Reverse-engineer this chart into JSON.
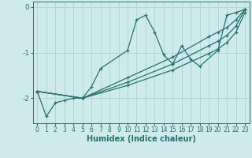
{
  "xlabel": "Humidex (Indice chaleur)",
  "xlim": [
    -0.5,
    23.5
  ],
  "ylim": [
    -2.55,
    0.12
  ],
  "yticks": [
    0,
    -1,
    -2
  ],
  "xticks": [
    0,
    1,
    2,
    3,
    4,
    5,
    6,
    7,
    8,
    9,
    10,
    11,
    12,
    13,
    14,
    15,
    16,
    17,
    18,
    19,
    20,
    21,
    22,
    23
  ],
  "bg_color": "#ceeaea",
  "line_color": "#2a7070",
  "grid_color": "#aad4d4",
  "lines": [
    {
      "x": [
        0,
        1,
        2,
        3,
        4,
        5,
        6,
        7,
        10,
        11,
        12,
        13,
        14,
        15,
        16,
        17,
        18,
        20,
        21,
        22,
        23
      ],
      "y": [
        -1.85,
        -2.4,
        -2.1,
        -2.05,
        -2.0,
        -2.0,
        -1.75,
        -1.35,
        -0.95,
        -0.28,
        -0.18,
        -0.55,
        -1.05,
        -1.25,
        -0.85,
        -1.15,
        -1.3,
        -0.95,
        -0.18,
        -0.12,
        -0.05
      ]
    },
    {
      "x": [
        0,
        5,
        10,
        15,
        19,
        20,
        21,
        22,
        23
      ],
      "y": [
        -1.85,
        -2.0,
        -1.55,
        -1.1,
        -0.65,
        -0.55,
        -0.45,
        -0.28,
        -0.05
      ]
    },
    {
      "x": [
        0,
        5,
        10,
        15,
        19,
        20,
        21,
        22,
        23
      ],
      "y": [
        -1.85,
        -2.0,
        -1.65,
        -1.25,
        -0.85,
        -0.75,
        -0.62,
        -0.42,
        -0.05
      ]
    },
    {
      "x": [
        0,
        5,
        10,
        15,
        19,
        20,
        21,
        22,
        23
      ],
      "y": [
        -1.85,
        -2.0,
        -1.72,
        -1.38,
        -1.02,
        -0.92,
        -0.78,
        -0.55,
        -0.12
      ]
    }
  ]
}
